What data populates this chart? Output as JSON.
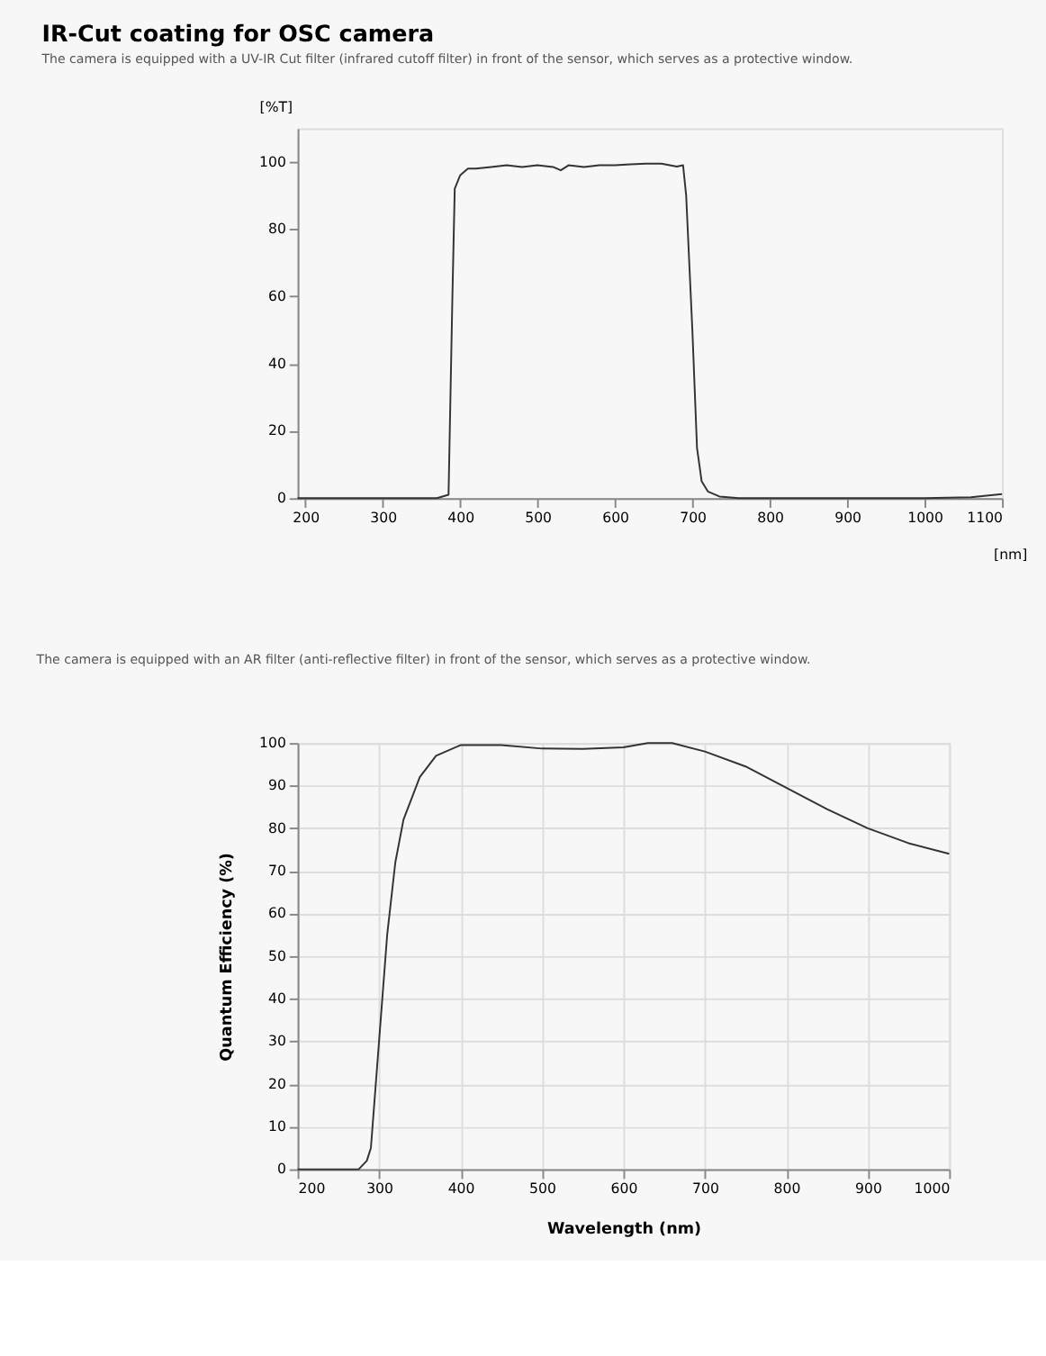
{
  "chart_data": [
    {
      "type": "line",
      "title": "IR-Cut coating for OSC camera",
      "subtitle": "The camera is equipped with a UV-IR Cut filter (infrared cutoff filter) in front of the sensor, which serves as a protective window.",
      "xlabel": "[nm]",
      "ylabel": "[%T]",
      "xlim": [
        190,
        1100
      ],
      "xticks": [
        200,
        300,
        400,
        500,
        600,
        700,
        800,
        900,
        1000,
        1100
      ],
      "ylim": [
        0,
        110
      ],
      "yticks": [
        0,
        20,
        40,
        60,
        80,
        100
      ],
      "grid": false,
      "marker": "none",
      "line_style": "solid",
      "x": [
        190,
        370,
        385,
        390,
        393,
        400,
        410,
        420,
        440,
        460,
        480,
        500,
        520,
        530,
        540,
        560,
        580,
        600,
        620,
        640,
        660,
        680,
        688,
        692,
        700,
        706,
        712,
        720,
        735,
        760,
        1000,
        1060,
        1100
      ],
      "series": [
        {
          "color": "#333333",
          "values": [
            0,
            0,
            1,
            60,
            92,
            96,
            98,
            98,
            98.5,
            99,
            98.5,
            99,
            98.5,
            97.5,
            99,
            98.5,
            99,
            99,
            99.3,
            99.5,
            99.5,
            98.6,
            99,
            90,
            50,
            15,
            5,
            2,
            0.5,
            0,
            0,
            0.3,
            1.2
          ]
        }
      ]
    },
    {
      "type": "line",
      "title": "The camera is equipped with an AR filter (anti-reflective filter) in front of the sensor, which serves as a protective window.",
      "xlabel": "Wavelength (nm)",
      "ylabel": "Quantum Efficiency (%)",
      "xlim": [
        200,
        1000
      ],
      "xticks": [
        200,
        300,
        400,
        500,
        600,
        700,
        800,
        900,
        1000
      ],
      "ylim": [
        0,
        100
      ],
      "yticks": [
        0,
        10,
        20,
        30,
        40,
        50,
        60,
        70,
        80,
        90,
        100
      ],
      "grid": true,
      "marker": "none",
      "line_style": "solid",
      "x": [
        200,
        275,
        285,
        290,
        300,
        310,
        320,
        330,
        350,
        370,
        400,
        450,
        500,
        550,
        600,
        630,
        660,
        700,
        750,
        800,
        850,
        900,
        950,
        1000
      ],
      "series": [
        {
          "color": "#333333",
          "values": [
            0,
            0,
            2,
            5,
            30,
            55,
            72,
            82,
            92,
            97,
            99.5,
            99.5,
            98.7,
            98.6,
            99,
            100,
            100,
            98,
            94.5,
            89.5,
            84.5,
            80,
            76.5,
            74
          ]
        }
      ]
    }
  ]
}
